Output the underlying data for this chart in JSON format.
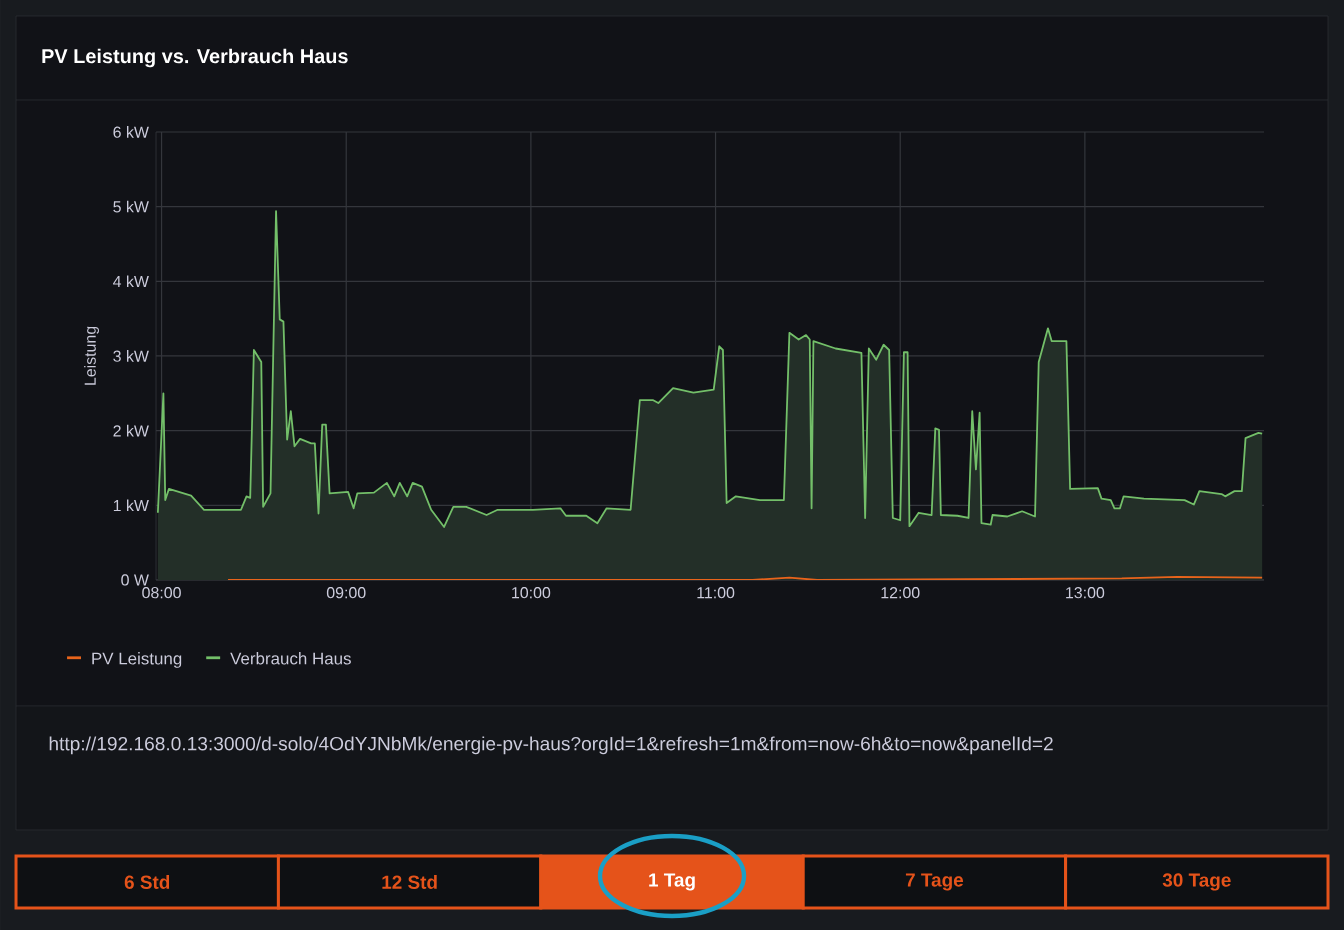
{
  "chart_data": {
    "type": "line",
    "title": "PV Leistung vs. Verbrauch Haus",
    "ylabel": "Leistung",
    "xlim": [
      7.97,
      13.97
    ],
    "ylim": [
      0,
      6
    ],
    "xticks": [
      {
        "value": 8,
        "label": "08:00"
      },
      {
        "value": 9,
        "label": "09:00"
      },
      {
        "value": 10,
        "label": "10:00"
      },
      {
        "value": 11,
        "label": "11:00"
      },
      {
        "value": 12,
        "label": "12:00"
      },
      {
        "value": 13,
        "label": "13:00"
      }
    ],
    "yticks": [
      {
        "value": 0,
        "label": "0 W"
      },
      {
        "value": 1,
        "label": "1 kW"
      },
      {
        "value": 2,
        "label": "2 kW"
      },
      {
        "value": 3,
        "label": "3 kW"
      },
      {
        "value": 4,
        "label": "4 kW"
      },
      {
        "value": 5,
        "label": "5 kW"
      },
      {
        "value": 6,
        "label": "6 kW"
      }
    ],
    "grid": true,
    "legend": "bottom left",
    "series": [
      {
        "name": "PV Leistung",
        "color": "#e8641b",
        "x": [
          8.36,
          11.2,
          11.4,
          11.55,
          13.2,
          13.5,
          13.96
        ],
        "values": [
          0,
          0,
          0.03,
          0,
          0.02,
          0.04,
          0.03
        ]
      },
      {
        "name": "Verbrauch Haus",
        "color": "#73bf69",
        "type": "area",
        "x": [
          7.98,
          8.01,
          8.02,
          8.04,
          8.16,
          8.23,
          8.43,
          8.46,
          8.48,
          8.5,
          8.54,
          8.55,
          8.59,
          8.62,
          8.64,
          8.66,
          8.68,
          8.7,
          8.72,
          8.75,
          8.81,
          8.83,
          8.85,
          8.87,
          8.89,
          8.91,
          9.01,
          9.04,
          9.06,
          9.15,
          9.22,
          9.26,
          9.29,
          9.33,
          9.36,
          9.41,
          9.46,
          9.53,
          9.58,
          9.65,
          9.76,
          9.82,
          10.01,
          10.16,
          10.19,
          10.3,
          10.36,
          10.41,
          10.54,
          10.59,
          10.66,
          10.69,
          10.77,
          10.88,
          10.99,
          11.02,
          11.04,
          11.06,
          11.11,
          11.24,
          11.37,
          11.4,
          11.45,
          11.49,
          11.51,
          11.52,
          11.53,
          11.65,
          11.79,
          11.81,
          11.83,
          11.87,
          11.91,
          11.94,
          11.96,
          12.0,
          12.02,
          12.04,
          12.05,
          12.1,
          12.17,
          12.19,
          12.21,
          12.22,
          12.31,
          12.37,
          12.39,
          12.41,
          12.43,
          12.44,
          12.49,
          12.5,
          12.58,
          12.66,
          12.73,
          12.75,
          12.8,
          12.82,
          12.9,
          12.92,
          13.07,
          13.09,
          13.14,
          13.16,
          13.19,
          13.21,
          13.32,
          13.54,
          13.59,
          13.62,
          13.74,
          13.76,
          13.81,
          13.85,
          13.87,
          13.91,
          13.94,
          13.96
        ],
        "values": [
          0.9,
          2.5,
          1.07,
          1.22,
          1.13,
          0.94,
          0.94,
          1.12,
          1.1,
          3.08,
          2.92,
          0.98,
          1.16,
          4.94,
          3.49,
          3.46,
          1.88,
          2.26,
          1.79,
          1.89,
          1.83,
          1.83,
          0.89,
          2.08,
          2.08,
          1.16,
          1.18,
          0.96,
          1.16,
          1.17,
          1.3,
          1.12,
          1.3,
          1.12,
          1.3,
          1.25,
          0.94,
          0.71,
          0.98,
          0.98,
          0.87,
          0.94,
          0.94,
          0.96,
          0.86,
          0.86,
          0.76,
          0.96,
          0.94,
          2.41,
          2.41,
          2.37,
          2.57,
          2.51,
          2.55,
          3.13,
          3.08,
          1.03,
          1.12,
          1.07,
          1.07,
          3.31,
          3.22,
          3.28,
          3.22,
          0.96,
          3.2,
          3.1,
          3.04,
          0.83,
          3.1,
          2.95,
          3.15,
          3.08,
          0.83,
          0.8,
          3.05,
          3.05,
          0.72,
          0.9,
          0.87,
          2.03,
          2.01,
          0.87,
          0.86,
          0.83,
          2.26,
          1.48,
          2.24,
          0.76,
          0.74,
          0.87,
          0.85,
          0.92,
          0.85,
          2.92,
          3.37,
          3.2,
          3.2,
          1.22,
          1.23,
          1.09,
          1.07,
          0.96,
          0.96,
          1.12,
          1.09,
          1.07,
          1.01,
          1.19,
          1.15,
          1.12,
          1.19,
          1.19,
          1.9,
          1.94,
          1.97,
          1.96
        ]
      }
    ],
    "annotations": [
      "http://192.168.0.13:3000/d-solo/4OdYJNbMk/energie-pv-haus?orgId=1&refresh=1m&from=now-6h&to=now&panelId=2",
      "6 Std",
      "12 Std",
      "1 Tag",
      "7 Tage",
      "30 Tage"
    ]
  }
}
